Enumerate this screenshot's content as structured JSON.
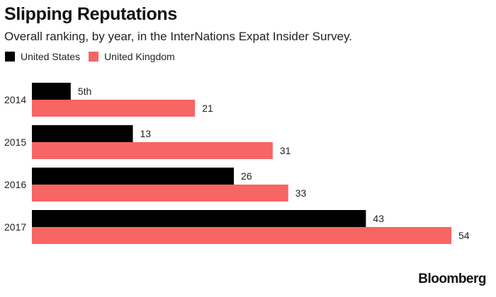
{
  "chart_data": {
    "type": "bar",
    "orientation": "horizontal",
    "title": "Slipping Reputations",
    "subtitle": "Overall ranking, by year, in the InterNations Expat Insider Survey.",
    "categories": [
      "2014",
      "2015",
      "2016",
      "2017"
    ],
    "series": [
      {
        "name": "United States",
        "color": "#000000",
        "values": [
          5,
          13,
          26,
          43
        ],
        "labels": [
          "5th",
          "13",
          "26",
          "43"
        ]
      },
      {
        "name": "United Kingdom",
        "color": "#f76565",
        "values": [
          21,
          31,
          33,
          54
        ],
        "labels": [
          "21",
          "31",
          "33",
          "54"
        ]
      }
    ],
    "xlim": [
      0,
      54
    ],
    "grid": false,
    "legend": "top-left"
  },
  "source": "Bloomberg"
}
